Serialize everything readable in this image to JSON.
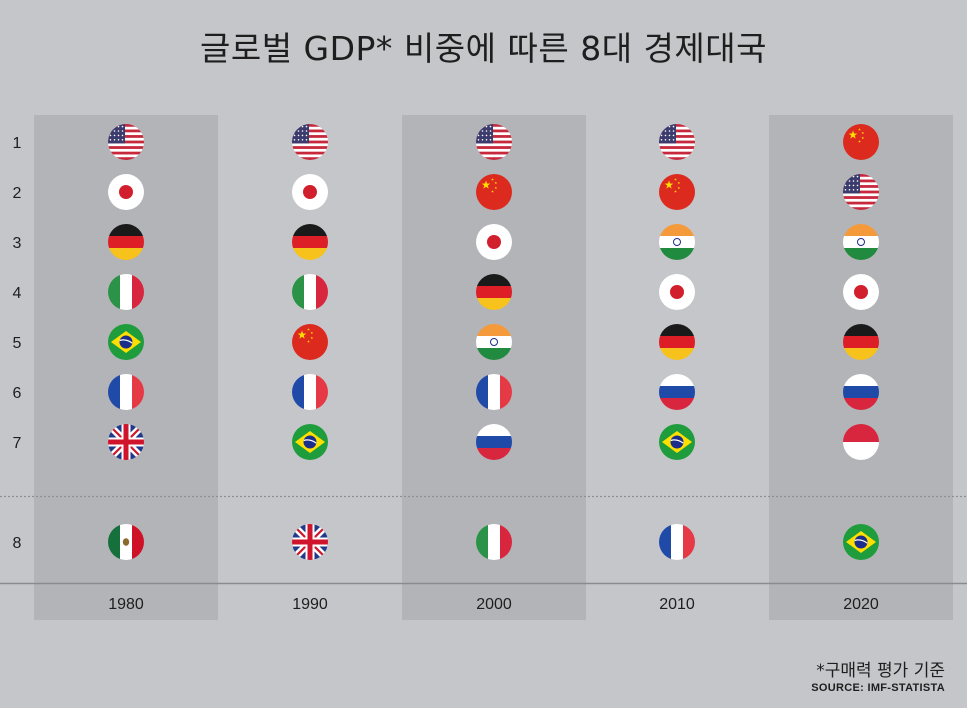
{
  "title": "글로벌 GDP* 비중에 따른 8대 경제대국",
  "footnote": "*구매력 평가 기준",
  "source": "SOURCE: IMF-STATISTA",
  "colors": {
    "background": "#c5c6ca",
    "column_shade": "#b3b4b8",
    "divider": "#8a8b8f"
  },
  "chart_data": {
    "type": "table",
    "ranks": [
      "1",
      "2",
      "3",
      "4",
      "5",
      "6",
      "7",
      "8"
    ],
    "years": [
      "1980",
      "1990",
      "2000",
      "2010",
      "2020"
    ],
    "rankings": {
      "1980": [
        "usa",
        "japan",
        "germany",
        "italy",
        "brazil",
        "france",
        "uk",
        "mexico"
      ],
      "1990": [
        "usa",
        "japan",
        "germany",
        "italy",
        "china",
        "france",
        "brazil",
        "uk"
      ],
      "2000": [
        "usa",
        "china",
        "japan",
        "germany",
        "india",
        "france",
        "russia",
        "italy"
      ],
      "2010": [
        "usa",
        "china",
        "india",
        "japan",
        "germany",
        "russia",
        "brazil",
        "france"
      ],
      "2020": [
        "china",
        "usa",
        "india",
        "japan",
        "germany",
        "russia",
        "indonesia",
        "brazil"
      ]
    }
  }
}
